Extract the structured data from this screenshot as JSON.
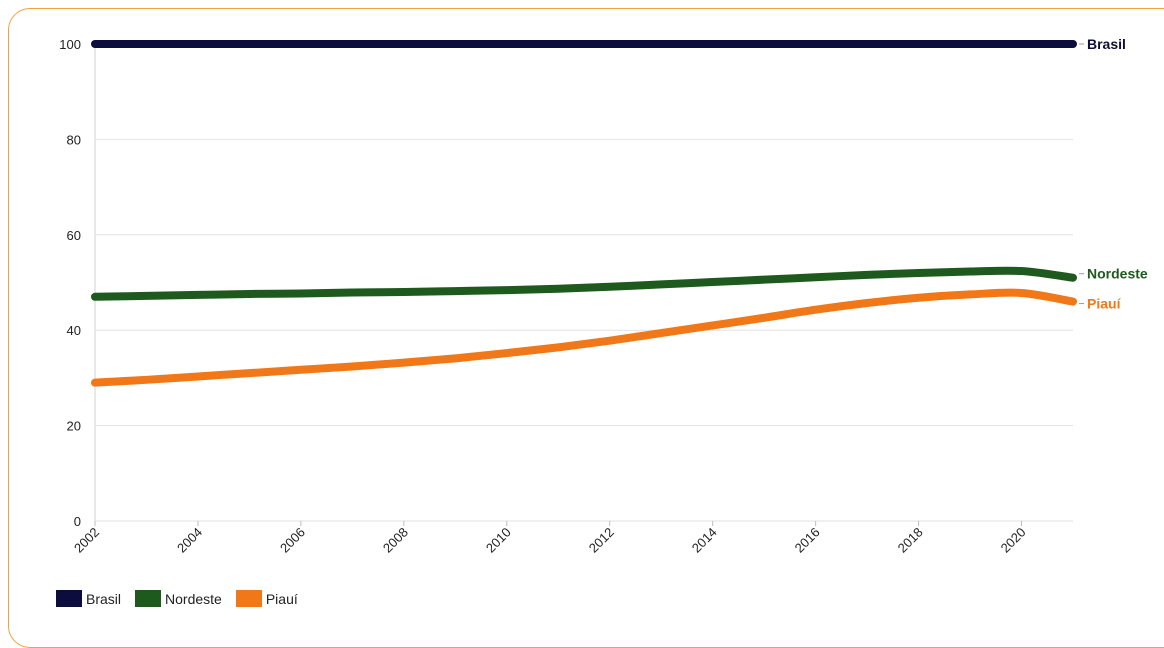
{
  "chart_data": {
    "type": "line",
    "title": "",
    "xlabel": "",
    "ylabel": "",
    "x": [
      2002,
      2003,
      2004,
      2005,
      2006,
      2007,
      2008,
      2009,
      2010,
      2011,
      2012,
      2013,
      2014,
      2015,
      2016,
      2017,
      2018,
      2019,
      2020,
      2021
    ],
    "x_ticks": [
      "2002",
      "2004",
      "2006",
      "2008",
      "2010",
      "2012",
      "2014",
      "2016",
      "2018",
      "2020"
    ],
    "y_ticks": [
      "0",
      "20",
      "40",
      "60",
      "80",
      "100"
    ],
    "xlim": [
      2002,
      2021
    ],
    "ylim": [
      0,
      100
    ],
    "grid": "horizontal",
    "legend_position": "bottom-left",
    "series": [
      {
        "name": "Brasil",
        "color": "#0d0d3d",
        "values": [
          100,
          100,
          100,
          100,
          100,
          100,
          100,
          100,
          100,
          100,
          100,
          100,
          100,
          100,
          100,
          100,
          100,
          100,
          100,
          100
        ]
      },
      {
        "name": "Nordeste",
        "color": "#1e5a1e",
        "values": [
          47.0,
          47.2,
          47.4,
          47.6,
          47.7,
          47.9,
          48.0,
          48.2,
          48.4,
          48.7,
          49.1,
          49.6,
          50.1,
          50.6,
          51.1,
          51.6,
          52.0,
          52.3,
          52.4,
          51.0
        ]
      },
      {
        "name": "Piauí",
        "color": "#f07818",
        "values": [
          29.0,
          29.6,
          30.3,
          31.0,
          31.7,
          32.4,
          33.2,
          34.1,
          35.2,
          36.4,
          37.8,
          39.4,
          41.0,
          42.6,
          44.3,
          45.7,
          46.8,
          47.5,
          47.8,
          46.0
        ]
      }
    ]
  }
}
